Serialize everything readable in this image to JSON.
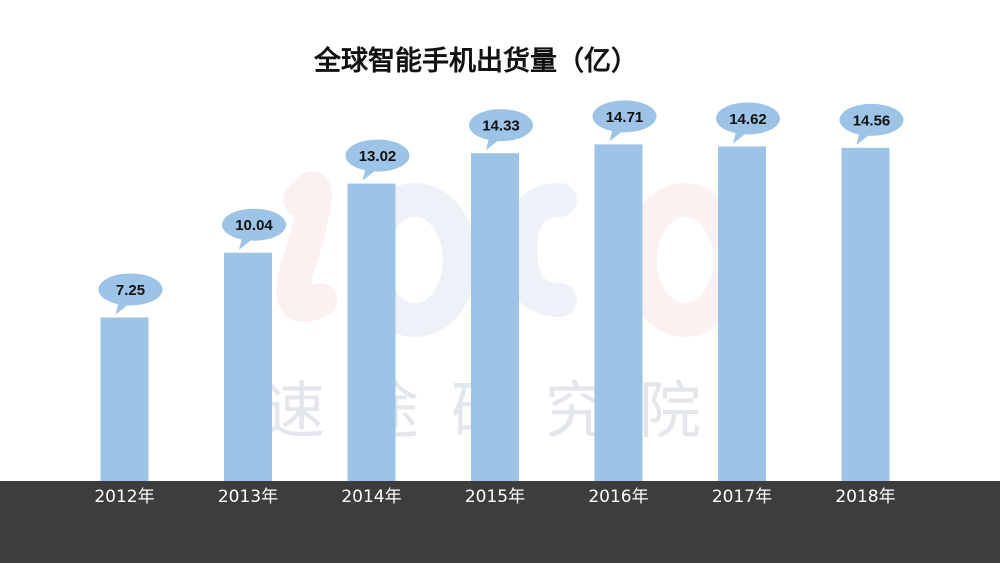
{
  "title": "全球智能手机出货量（亿）",
  "watermark": "速途研究院",
  "colors": {
    "bar": "#9dc3e6",
    "footer": "#3d3d3d",
    "title": "#111111",
    "year_text": "#ffffff"
  },
  "chart_data": {
    "type": "bar",
    "title": "全球智能手机出货量（亿）",
    "categories": [
      "2012年",
      "2013年",
      "2014年",
      "2015年",
      "2016年",
      "2017年",
      "2018年"
    ],
    "values": [
      7.25,
      10.04,
      13.02,
      14.33,
      14.71,
      14.62,
      14.56
    ],
    "value_labels": [
      "7.25",
      "10.04",
      "13.02",
      "14.33",
      "14.71",
      "14.62",
      "14.56"
    ],
    "xlabel": "",
    "ylabel": "",
    "grid": false,
    "legend": "none"
  }
}
